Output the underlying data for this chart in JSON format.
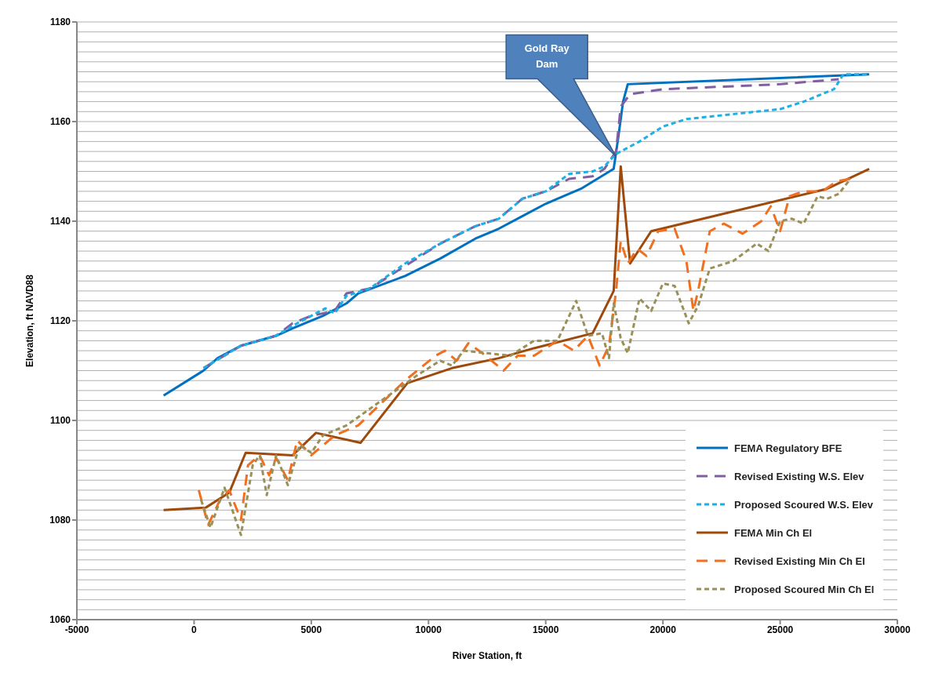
{
  "chart_data": {
    "type": "line",
    "xlabel": "River Station, ft",
    "ylabel": "Elevation, ft NAVD88",
    "xlim": [
      -5000,
      30000
    ],
    "xticks": [
      -5000,
      0,
      5000,
      10000,
      15000,
      20000,
      25000,
      30000
    ],
    "ylim": [
      1060,
      1180
    ],
    "yticks": [
      1060,
      1080,
      1100,
      1120,
      1140,
      1160,
      1180
    ],
    "grid": "y",
    "legend": "bottom right",
    "marker": "none",
    "annotations": [
      "Gold Ray Dam"
    ],
    "series": [
      {
        "name": "FEMA Regulatory BFE",
        "color": "#0070c0",
        "line_style": "solid",
        "x": [
          -1300,
          400,
          1000,
          2000,
          3500,
          4200,
          5500,
          6500,
          7000,
          9000,
          10500,
          12000,
          13000,
          14000,
          15000,
          16500,
          17200,
          17900,
          18100,
          18300,
          18500,
          28800
        ],
        "values": [
          1105,
          1110,
          1112.5,
          1115,
          1117,
          1118.5,
          1121,
          1123.5,
          1125.5,
          1129,
          1132.5,
          1136.5,
          1138.5,
          1141,
          1143.5,
          1146.5,
          1148.5,
          1150.5,
          1157,
          1164,
          1167.5,
          1169.5
        ]
      },
      {
        "name": "Revised Existing W.S. Elev",
        "color": "#7f5f9f",
        "line_style": "dashed",
        "x": [
          400,
          2000,
          3500,
          4200,
          5000,
          6000,
          6500,
          7500,
          9000,
          10500,
          12000,
          13000,
          14000,
          15000,
          16000,
          17000,
          17500,
          18000,
          18200,
          18600,
          20000,
          25000,
          27500
        ],
        "values": [
          1110.5,
          1115,
          1117,
          1119.5,
          1121,
          1122,
          1125.5,
          1126.5,
          1131,
          1135.5,
          1139,
          1140.5,
          1144.5,
          1146,
          1148.5,
          1149,
          1150.5,
          1154,
          1163,
          1165.5,
          1166.5,
          1167.5,
          1168.5
        ]
      },
      {
        "name": "Proposed Scoured W.S. Elev",
        "color": "#1cb0e8",
        "line_style": "dotted",
        "x": [
          400,
          2000,
          3500,
          4200,
          5000,
          5600,
          6000,
          6500,
          7500,
          9000,
          10500,
          12000,
          13000,
          14000,
          15000,
          16000,
          17000,
          17500,
          18000,
          19000,
          20000,
          21000,
          23000,
          25000,
          26000,
          27300,
          27700,
          28800
        ],
        "values": [
          1110.5,
          1115,
          1117,
          1119,
          1121,
          1122.5,
          1121.5,
          1125,
          1126.5,
          1131.5,
          1135.5,
          1139,
          1140.5,
          1144.5,
          1146,
          1149.5,
          1150,
          1151,
          1153.5,
          1156,
          1159,
          1160.5,
          1161.5,
          1162.5,
          1164,
          1166.5,
          1169.5,
          1169.5
        ]
      },
      {
        "name": "FEMA Min Ch El",
        "color": "#9e4a0c",
        "line_style": "solid",
        "x": [
          -1300,
          500,
          1500,
          2200,
          4200,
          5200,
          7100,
          9100,
          11000,
          13000,
          14500,
          17000,
          17900,
          18200,
          18600,
          19500,
          27000,
          28800
        ],
        "values": [
          1082,
          1082.5,
          1085.5,
          1093.5,
          1093,
          1097.5,
          1095.5,
          1107.5,
          1110.5,
          1112.5,
          1114.5,
          1117.5,
          1126,
          1151,
          1131.5,
          1138,
          1146.5,
          1150.5
        ]
      },
      {
        "name": "Revised Existing Min Ch El",
        "color": "#f07020",
        "line_style": "dashed",
        "x": [
          200,
          600,
          1100,
          1500,
          2000,
          2300,
          2800,
          3200,
          3500,
          4000,
          4400,
          5000,
          5500,
          6000,
          7000,
          8000,
          9000,
          10300,
          10700,
          11200,
          11700,
          12300,
          13200,
          13800,
          14500,
          15500,
          16200,
          16800,
          17300,
          17700,
          18000,
          18200,
          18500,
          18900,
          19300,
          19800,
          20500,
          21000,
          21300,
          21500,
          22000,
          22600,
          23400,
          24200,
          24600,
          25000,
          25400,
          26000,
          26800,
          27400,
          28000
        ],
        "values": [
          1086,
          1079,
          1084,
          1086,
          1080,
          1091,
          1093,
          1089,
          1092.5,
          1088,
          1096,
          1093,
          1095,
          1097,
          1099,
          1103.5,
          1108,
          1113,
          1114,
          1112,
          1115.5,
          1113.5,
          1110,
          1113,
          1113,
          1116,
          1114,
          1117,
          1111,
          1115,
          1126,
          1136,
          1131.5,
          1134.5,
          1133,
          1138,
          1138.5,
          1132,
          1122,
          1126,
          1138,
          1139.5,
          1137.5,
          1140,
          1143,
          1138,
          1145,
          1146,
          1146,
          1148,
          1148.5
        ]
      },
      {
        "name": "Proposed Scoured Min Ch El",
        "color": "#9a9058",
        "line_style": "dotted",
        "x": [
          300,
          700,
          1300,
          2000,
          2500,
          2800,
          3100,
          3500,
          4000,
          4500,
          5000,
          5500,
          6500,
          8000,
          9500,
          10500,
          11000,
          11500,
          12500,
          13500,
          14500,
          15500,
          16300,
          16800,
          17400,
          17700,
          17900,
          18200,
          18500,
          19000,
          19500,
          20000,
          20500,
          21100,
          21500,
          22000,
          23000,
          24000,
          24500,
          25000,
          25500,
          26000,
          26600,
          27000,
          27500,
          28000
        ],
        "values": [
          1084,
          1078.5,
          1086.5,
          1077,
          1091,
          1093,
          1085,
          1093,
          1087,
          1095,
          1093.5,
          1097,
          1099,
          1104,
          1109,
          1112,
          1111,
          1114,
          1113.5,
          1113,
          1116,
          1116,
          1124,
          1117,
          1117.5,
          1112.5,
          1123.5,
          1116.5,
          1113.5,
          1124.5,
          1122,
          1127.5,
          1127,
          1119.5,
          1123,
          1130.5,
          1132,
          1135.5,
          1134,
          1140,
          1140.5,
          1139.5,
          1145,
          1144.5,
          1145.5,
          1148.5
        ]
      }
    ]
  }
}
